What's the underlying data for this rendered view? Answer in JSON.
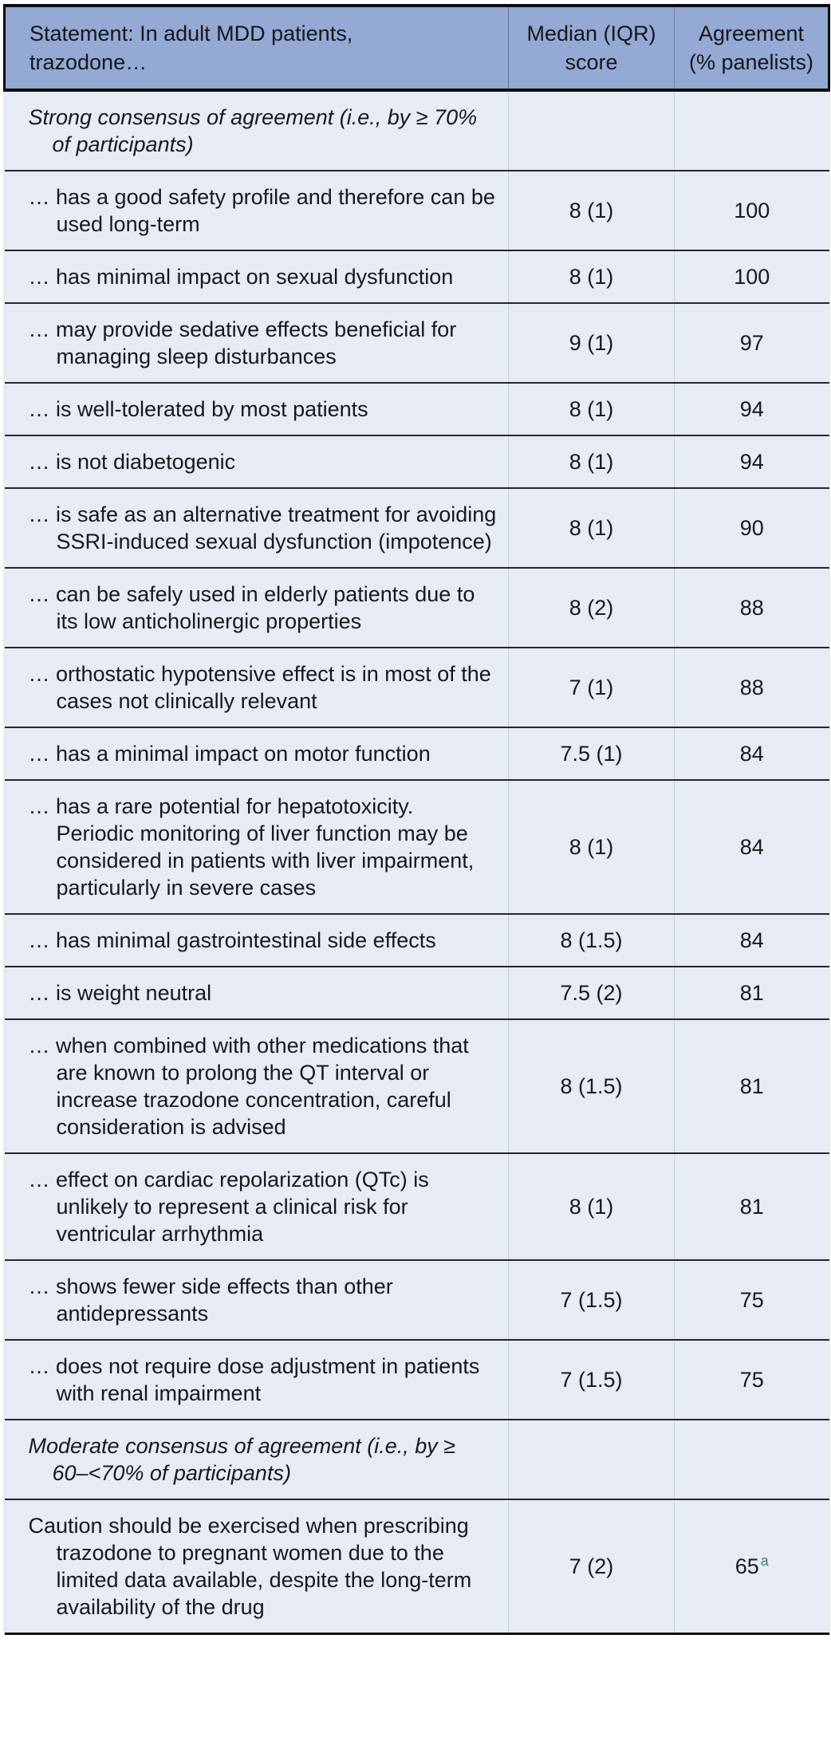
{
  "colors": {
    "header_background": "#94a9d4",
    "row_background": "#e7ebf6",
    "rule_dark": "#0d0d0d",
    "footnote_marker": "#3b7f7e"
  },
  "table": {
    "header": {
      "statement": "Statement: In adult MDD patients, trazodone…",
      "median_score": "Median (IQR) score",
      "agreement": "Agreement (% panelists)"
    },
    "sections": [
      {
        "title": "Strong consensus of agreement (i.e., by ≥ 70% of participants)",
        "rows": [
          {
            "statement": "… has a good safety profile and therefore can be used long-term",
            "median": "8 (1)",
            "agreement": "100"
          },
          {
            "statement": "… has minimal impact on sexual dysfunction",
            "median": "8 (1)",
            "agreement": "100"
          },
          {
            "statement": "… may provide sedative effects beneficial for managing sleep disturbances",
            "median": "9 (1)",
            "agreement": "97"
          },
          {
            "statement": "… is well-tolerated by most patients",
            "median": "8 (1)",
            "agreement": "94"
          },
          {
            "statement": "… is not diabetogenic",
            "median": "8 (1)",
            "agreement": "94"
          },
          {
            "statement": "… is safe as an alternative treatment for avoiding SSRI-induced sexual dysfunction (impotence)",
            "median": "8 (1)",
            "agreement": "90"
          },
          {
            "statement": "… can be safely used in elderly patients due to its low anticholinergic properties",
            "median": "8 (2)",
            "agreement": "88"
          },
          {
            "statement": "… orthostatic hypotensive effect is in most of the cases not clinically relevant",
            "median": "7 (1)",
            "agreement": "88"
          },
          {
            "statement": "… has a minimal impact on motor function",
            "median": "7.5 (1)",
            "agreement": "84"
          },
          {
            "statement": "… has a rare potential for hepatotoxicity. Periodic monitoring of liver function may be considered in patients with liver impairment, particularly in severe cases",
            "median": "8 (1)",
            "agreement": "84"
          },
          {
            "statement": "… has minimal gastrointestinal side effects",
            "median": "8 (1.5)",
            "agreement": "84"
          },
          {
            "statement": "… is weight neutral",
            "median": "7.5 (2)",
            "agreement": "81"
          },
          {
            "statement": "… when combined with other medications that are known to prolong the QT interval or increase trazodone concentration, careful consideration is advised",
            "median": "8 (1.5)",
            "agreement": "81"
          },
          {
            "statement": "… effect on cardiac repolarization (QTc) is unlikely to represent a clinical risk for ventricular arrhythmia",
            "median": "8 (1)",
            "agreement": "81"
          },
          {
            "statement": "… shows fewer side effects than other antidepressants",
            "median": "7 (1.5)",
            "agreement": "75"
          },
          {
            "statement": "… does not require dose adjustment in patients with renal impairment",
            "median": "7 (1.5)",
            "agreement": "75"
          }
        ]
      },
      {
        "title": "Moderate consensus of agreement (i.e., by ≥ 60–<70% of participants)",
        "rows": [
          {
            "statement": "Caution should be exercised when prescribing trazodone to pregnant women due to the limited data available, despite the long-term availability of the drug",
            "median": "7 (2)",
            "agreement": "65",
            "agreement_footnote": "a"
          }
        ]
      }
    ]
  }
}
